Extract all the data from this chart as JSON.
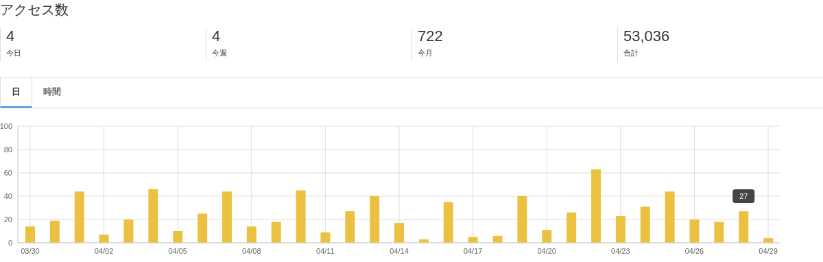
{
  "chart_data": {
    "type": "bar",
    "title": "アクセス数",
    "annotations": [
      "4",
      "今日",
      "4",
      "今週",
      "722",
      "今月",
      "53,036",
      "合計",
      "日",
      "時間"
    ],
    "categories": [
      "03/30",
      null,
      null,
      "04/02",
      null,
      null,
      "04/05",
      null,
      null,
      "04/08",
      null,
      null,
      "04/11",
      null,
      null,
      "04/14",
      null,
      null,
      "04/17",
      null,
      null,
      "04/20",
      null,
      null,
      "04/23",
      null,
      null,
      "04/26",
      null,
      null,
      "04/29"
    ],
    "values": [
      14,
      19,
      44,
      7,
      20,
      46,
      10,
      25,
      44,
      14,
      18,
      45,
      9,
      27,
      40,
      17,
      3,
      35,
      5,
      6,
      40,
      11,
      26,
      63,
      23,
      31,
      44,
      20,
      18,
      27,
      4
    ],
    "value_labels": [
      null,
      null,
      null,
      null,
      null,
      null,
      null,
      null,
      null,
      null,
      null,
      null,
      null,
      null,
      null,
      null,
      null,
      null,
      null,
      null,
      null,
      null,
      null,
      null,
      null,
      null,
      null,
      null,
      null,
      "27",
      null
    ],
    "color": "#ecc142",
    "ylim": [
      0,
      100
    ],
    "yticks": [
      0,
      20,
      40,
      60,
      80,
      100
    ],
    "grid": true
  }
}
